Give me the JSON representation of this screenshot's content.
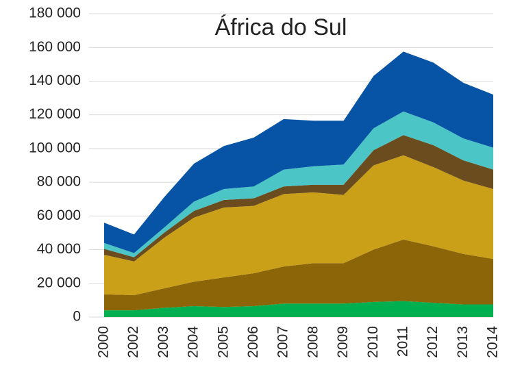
{
  "chart_data": {
    "type": "stacked_area",
    "title": "África do Sul",
    "categories": [
      "2000",
      "2002",
      "2003",
      "2004",
      "2005",
      "2006",
      "2007",
      "2008",
      "2009",
      "2010",
      "2011",
      "2012",
      "2013",
      "2014"
    ],
    "series": [
      {
        "color": "#00b050",
        "values": [
          4000,
          4000,
          5500,
          6500,
          6000,
          6500,
          8000,
          8000,
          8000,
          9000,
          9500,
          8500,
          7500,
          7500
        ]
      },
      {
        "color": "#8b6508",
        "values": [
          9500,
          9000,
          11500,
          14500,
          17500,
          19500,
          22000,
          24000,
          24000,
          31000,
          36500,
          33500,
          30000,
          27000
        ]
      },
      {
        "color": "#c9a018",
        "values": [
          23500,
          20000,
          30000,
          38000,
          41500,
          40000,
          43000,
          42000,
          40500,
          50000,
          50000,
          47000,
          43500,
          41500
        ]
      },
      {
        "color": "#6b4c1e",
        "values": [
          3500,
          2500,
          3000,
          4000,
          4500,
          4500,
          4500,
          4500,
          6000,
          9000,
          12000,
          13000,
          12000,
          11500
        ]
      },
      {
        "color": "#4bc5c5",
        "values": [
          3500,
          2500,
          3000,
          5500,
          6500,
          7000,
          10000,
          11000,
          12000,
          13000,
          14000,
          13500,
          13000,
          13000
        ]
      },
      {
        "color": "#0753a5",
        "values": [
          12000,
          11000,
          18000,
          22500,
          25500,
          29000,
          30000,
          27000,
          26000,
          31000,
          35500,
          35500,
          33000,
          31500
        ]
      }
    ],
    "ylim": [
      0,
      180000
    ],
    "yticks": [
      0,
      {
        "value": 20000,
        "label": "20 000"
      },
      {
        "value": 40000,
        "label": "40 000"
      },
      {
        "value": 60000,
        "label": "60 000"
      },
      {
        "value": 80000,
        "label": "80 000"
      },
      {
        "value": 100000,
        "label": "100 000"
      },
      {
        "value": 120000,
        "label": "120 000"
      },
      {
        "value": 140000,
        "label": "140 000"
      },
      {
        "value": 160000,
        "label": "160 000"
      },
      {
        "value": 180000,
        "label": "180 000"
      }
    ],
    "grid": true
  }
}
